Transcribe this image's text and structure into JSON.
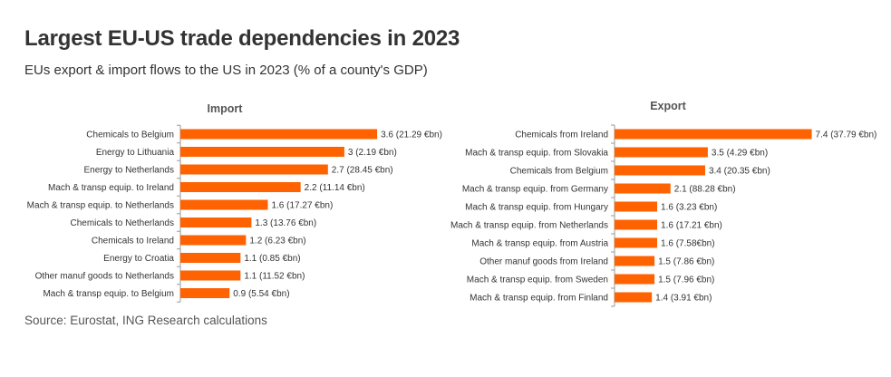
{
  "title": "Largest EU-US trade dependencies in 2023",
  "subtitle": "EUs export & import flows to the US in 2023 (% of a county's GDP)",
  "source": "Source: Eurostat, ING Research calculations",
  "colors": {
    "bar": "#FF6200",
    "axis": "#9a9a9a"
  },
  "chart_data": [
    {
      "type": "bar",
      "orientation": "horizontal",
      "title": "Import",
      "categories": [
        "Chemicals to Belgium",
        "Energy to Lithuania",
        "Energy to Netherlands",
        "Mach & transp equip. to Ireland",
        "Mach & transp equip. to Netherlands",
        "Chemicals to Netherlands",
        "Chemicals to Ireland",
        "Energy to Croatia",
        "Other manuf goods to Netherlands",
        "Mach & transp equip. to Belgium"
      ],
      "values": [
        3.6,
        3,
        2.7,
        2.2,
        1.6,
        1.3,
        1.2,
        1.1,
        1.1,
        0.9
      ],
      "labels": [
        "3.6 (21.29 €bn)",
        "3 (2.19 €bn)",
        "2.7 (28.45 €bn)",
        "2.2 (11.14 €bn)",
        "1.6 (17.27 €bn)",
        "1.3 (13.76 €bn)",
        "1.2 (6.23 €bn)",
        "1.1 (0.85 €bn)",
        "1.1 (11.52 €bn)",
        "0.9 (5.54 €bn)"
      ]
    },
    {
      "type": "bar",
      "orientation": "horizontal",
      "title": "Export",
      "categories": [
        "Chemicals from Ireland",
        "Mach & transp equip. from Slovakia",
        "Chemicals from Belgium",
        "Mach & transp equip. from Germany",
        "Mach & transp equip. from Hungary",
        "Mach & transp equip. from Netherlands",
        "Mach & transp equip. from Austria",
        "Other manuf goods from Ireland",
        "Mach & transp equip. from Sweden",
        "Mach & transp equip. from Finland"
      ],
      "values": [
        7.4,
        3.5,
        3.4,
        2.1,
        1.6,
        1.6,
        1.6,
        1.5,
        1.5,
        1.4
      ],
      "labels": [
        "7.4 (37.79 €bn)",
        "3.5 (4.29 €bn)",
        "3.4 (20.35 €bn)",
        "2.1 (88.28 €bn)",
        "1.6 (3.23 €bn)",
        "1.6 (17.21 €bn)",
        "1.6 (7.58€bn)",
        "1.5 (7.86 €bn)",
        "1.5 (7.96 €bn)",
        "1.4 (3.91 €bn)"
      ]
    }
  ]
}
